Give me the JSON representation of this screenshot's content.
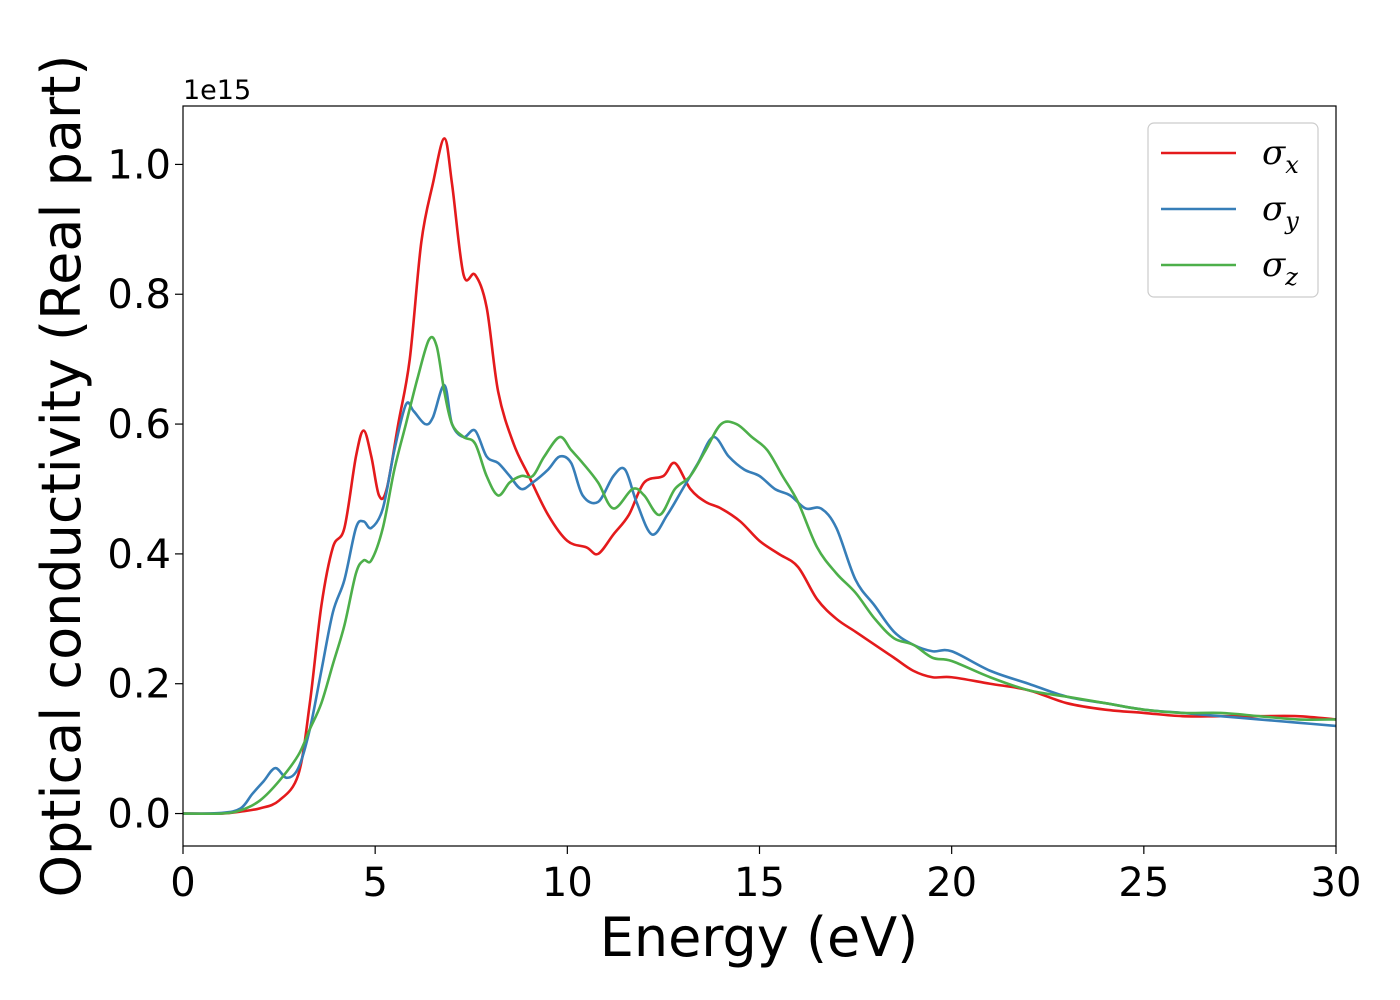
{
  "chart_data": {
    "type": "line",
    "xlabel": "Energy (eV)",
    "ylabel": "Optical conductivity (Real part)",
    "y_offset_label": "1e15",
    "xlim": [
      0,
      30
    ],
    "ylim": [
      -0.05,
      1.09
    ],
    "xticks": [
      0,
      5,
      10,
      15,
      20,
      25,
      30
    ],
    "xtick_labels": [
      "0",
      "5",
      "10",
      "15",
      "20",
      "25",
      "30"
    ],
    "yticks": [
      0.0,
      0.2,
      0.4,
      0.6,
      0.8,
      1.0
    ],
    "ytick_labels": [
      "0.0",
      "0.2",
      "0.4",
      "0.6",
      "0.8",
      "1.0"
    ],
    "grid": false,
    "legend_position": "top-right",
    "series": [
      {
        "name": "σx",
        "symbol": "σ",
        "subscript": "x",
        "color": "#e41a1c",
        "x": [
          0,
          1,
          1.5,
          2,
          2.5,
          3,
          3.3,
          3.6,
          3.9,
          4.2,
          4.5,
          4.7,
          4.9,
          5.1,
          5.3,
          5.6,
          5.9,
          6.2,
          6.5,
          6.8,
          7.0,
          7.3,
          7.6,
          7.9,
          8.2,
          8.6,
          9.0,
          9.5,
          10.0,
          10.5,
          10.8,
          11.2,
          11.6,
          12.0,
          12.5,
          12.8,
          13.2,
          13.6,
          14.0,
          14.5,
          15.0,
          15.5,
          16.0,
          16.5,
          17.0,
          17.5,
          18.0,
          18.5,
          19.0,
          19.5,
          20.0,
          21.0,
          22.0,
          23.0,
          24.0,
          25.0,
          26.0,
          27.0,
          28.0,
          29.0,
          30.0
        ],
        "y": [
          0.0,
          0.0,
          0.003,
          0.008,
          0.02,
          0.06,
          0.17,
          0.32,
          0.41,
          0.44,
          0.55,
          0.59,
          0.55,
          0.49,
          0.5,
          0.6,
          0.7,
          0.88,
          0.97,
          1.04,
          0.97,
          0.83,
          0.83,
          0.78,
          0.65,
          0.57,
          0.52,
          0.46,
          0.42,
          0.41,
          0.4,
          0.43,
          0.46,
          0.51,
          0.52,
          0.54,
          0.5,
          0.48,
          0.47,
          0.45,
          0.42,
          0.4,
          0.38,
          0.33,
          0.3,
          0.28,
          0.26,
          0.24,
          0.22,
          0.21,
          0.21,
          0.2,
          0.19,
          0.17,
          0.16,
          0.155,
          0.15,
          0.15,
          0.15,
          0.15,
          0.145
        ]
      },
      {
        "name": "σy",
        "symbol": "σ",
        "subscript": "y",
        "color": "#377eb8",
        "x": [
          0,
          1,
          1.5,
          1.8,
          2.1,
          2.4,
          2.7,
          3.0,
          3.3,
          3.6,
          3.9,
          4.2,
          4.5,
          4.7,
          4.9,
          5.2,
          5.5,
          5.8,
          6.0,
          6.3,
          6.5,
          6.8,
          7.0,
          7.3,
          7.6,
          7.9,
          8.2,
          8.5,
          8.8,
          9.1,
          9.5,
          9.8,
          10.1,
          10.4,
          10.8,
          11.2,
          11.5,
          11.8,
          12.2,
          12.6,
          13.0,
          13.4,
          13.8,
          14.2,
          14.6,
          15.0,
          15.4,
          15.8,
          16.2,
          16.6,
          17.0,
          17.5,
          18.0,
          18.5,
          19.0,
          19.5,
          20.0,
          21.0,
          22.0,
          23.0,
          24.0,
          25.0,
          26.0,
          27.0,
          28.0,
          29.0,
          30.0
        ],
        "y": [
          0.0,
          0.001,
          0.008,
          0.03,
          0.05,
          0.07,
          0.055,
          0.07,
          0.13,
          0.22,
          0.31,
          0.36,
          0.44,
          0.45,
          0.44,
          0.47,
          0.56,
          0.63,
          0.62,
          0.6,
          0.61,
          0.66,
          0.6,
          0.58,
          0.59,
          0.55,
          0.54,
          0.52,
          0.5,
          0.51,
          0.53,
          0.55,
          0.54,
          0.49,
          0.48,
          0.52,
          0.53,
          0.48,
          0.43,
          0.46,
          0.5,
          0.54,
          0.58,
          0.55,
          0.53,
          0.52,
          0.5,
          0.49,
          0.47,
          0.47,
          0.44,
          0.36,
          0.32,
          0.28,
          0.26,
          0.25,
          0.25,
          0.22,
          0.2,
          0.18,
          0.17,
          0.16,
          0.155,
          0.15,
          0.145,
          0.14,
          0.135
        ]
      },
      {
        "name": "σz",
        "symbol": "σ",
        "subscript": "z",
        "color": "#4daf4a",
        "x": [
          0,
          1,
          1.5,
          2.0,
          2.5,
          3.0,
          3.3,
          3.6,
          3.9,
          4.2,
          4.5,
          4.7,
          4.9,
          5.2,
          5.5,
          5.8,
          6.1,
          6.4,
          6.6,
          6.8,
          7.0,
          7.3,
          7.6,
          7.9,
          8.2,
          8.5,
          8.8,
          9.1,
          9.4,
          9.8,
          10.1,
          10.4,
          10.8,
          11.2,
          11.7,
          12.0,
          12.4,
          12.8,
          13.2,
          13.6,
          14.0,
          14.4,
          14.8,
          15.2,
          15.6,
          16.0,
          16.5,
          17.0,
          17.5,
          18.0,
          18.5,
          19.0,
          19.5,
          20.0,
          21.0,
          22.0,
          23.0,
          24.0,
          25.0,
          26.0,
          27.0,
          28.0,
          29.0,
          30.0
        ],
        "y": [
          0.0,
          0.0,
          0.005,
          0.02,
          0.05,
          0.09,
          0.13,
          0.17,
          0.23,
          0.29,
          0.37,
          0.39,
          0.39,
          0.44,
          0.53,
          0.6,
          0.67,
          0.73,
          0.72,
          0.65,
          0.6,
          0.58,
          0.57,
          0.52,
          0.49,
          0.51,
          0.52,
          0.52,
          0.55,
          0.58,
          0.56,
          0.54,
          0.51,
          0.47,
          0.5,
          0.49,
          0.46,
          0.5,
          0.52,
          0.56,
          0.6,
          0.6,
          0.58,
          0.56,
          0.52,
          0.48,
          0.41,
          0.37,
          0.34,
          0.3,
          0.27,
          0.26,
          0.24,
          0.235,
          0.21,
          0.19,
          0.18,
          0.17,
          0.16,
          0.155,
          0.155,
          0.15,
          0.145,
          0.145
        ]
      }
    ]
  }
}
